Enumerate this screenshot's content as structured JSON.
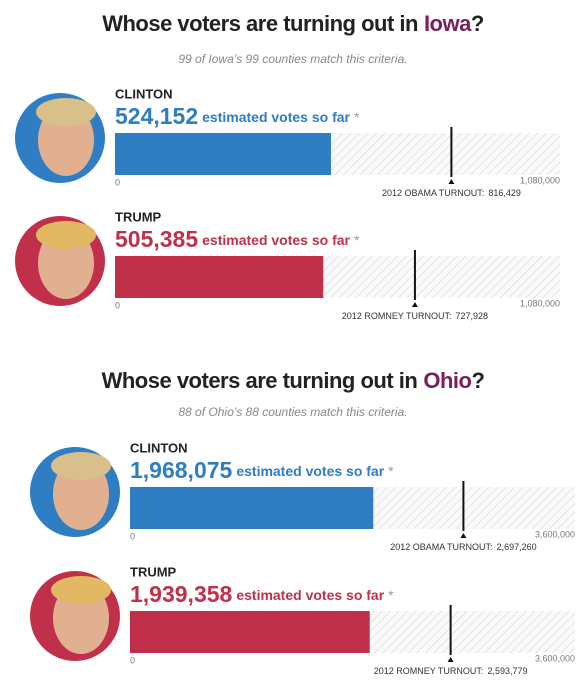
{
  "sections": [
    {
      "title": "Whose voters are turning out in",
      "state": "Iowa",
      "title_end": "?",
      "subtitle": "99 of Iowa’s 99 counties match this criteria.",
      "xlim": [
        0,
        1080000
      ],
      "xticks": [
        0,
        {
          "value": 1080000,
          "label": "1,080,000"
        }
      ],
      "candidates": [
        {
          "name": "CLINTON",
          "color": "#2f7dc2",
          "votes": {
            "value": 524152,
            "label": "524,152"
          },
          "votes_text": "estimated votes so far",
          "asterisk": "*",
          "turnout_text": "2012 OBAMA TURNOUT:",
          "turnout": {
            "value": 816429,
            "label": "816,429"
          }
        },
        {
          "name": "TRUMP",
          "color": "#c0304a",
          "votes": {
            "value": 505385,
            "label": "505,385"
          },
          "votes_text": "estimated votes so far",
          "asterisk": "*",
          "turnout_text": "2012 ROMNEY TURNOUT:",
          "turnout": {
            "value": 727928,
            "label": "727,928"
          }
        }
      ]
    },
    {
      "title": "Whose voters are turning out in",
      "state": "Ohio",
      "title_end": "?",
      "subtitle": "88 of Ohio’s 88 counties match this criteria.",
      "xlim": [
        0,
        3600000
      ],
      "xticks": [
        0,
        {
          "value": 3600000,
          "label": "3,600,000"
        }
      ],
      "candidates": [
        {
          "name": "CLINTON",
          "color": "#2f7dc2",
          "votes": {
            "value": 1968075,
            "label": "1,968,075"
          },
          "votes_text": "estimated votes so far",
          "asterisk": "*",
          "turnout_text": "2012 OBAMA TURNOUT:",
          "turnout": {
            "value": 2697260,
            "label": "2,697,260"
          }
        },
        {
          "name": "TRUMP",
          "color": "#c0304a",
          "votes": {
            "value": 1939358,
            "label": "1,939,358"
          },
          "votes_text": "estimated votes so far",
          "asterisk": "*",
          "turnout_text": "2012 ROMNEY TURNOUT:",
          "turnout": {
            "value": 2593779,
            "label": "2,593,779"
          }
        }
      ]
    }
  ]
}
